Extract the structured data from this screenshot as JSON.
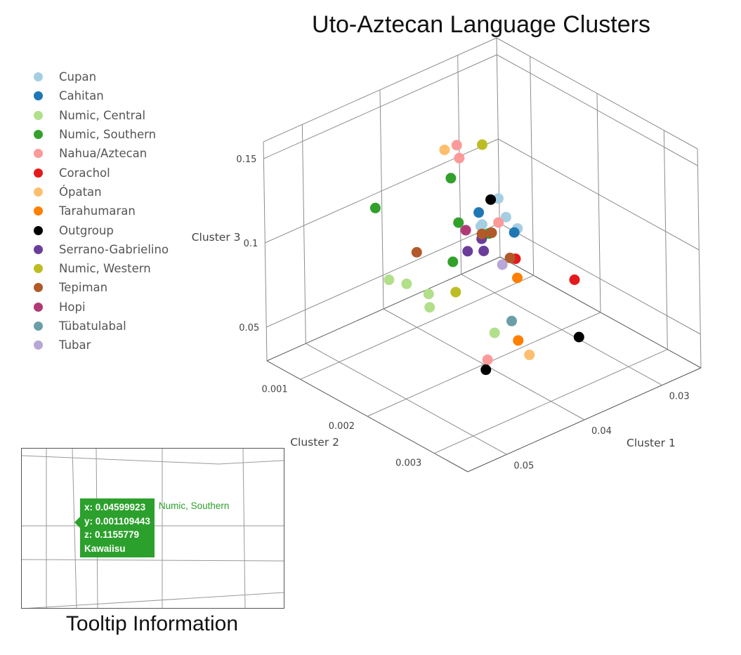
{
  "chart_data": {
    "type": "scatter",
    "title": "Uto-Aztecan Language Clusters",
    "xlabel": "Cluster 1",
    "ylabel": "Cluster 2",
    "zlabel": "Cluster 3",
    "x_ticks": [
      "0.03",
      "0.04",
      "0.05"
    ],
    "y_ticks": [
      "0.001",
      "0.002",
      "0.003"
    ],
    "z_ticks": [
      "0.15",
      "0.1",
      "0.05"
    ],
    "xlim": [
      0.025,
      0.055
    ],
    "ylim": [
      0.0005,
      0.0035
    ],
    "zlim": [
      0.03,
      0.16
    ],
    "legend_position": "left",
    "series": [
      {
        "name": "Cupan",
        "color": "#a6cee3",
        "points": [
          [
            0.0301,
            0.0012,
            0.0795
          ],
          [
            0.0268,
            0.0007,
            0.0728
          ],
          [
            0.0325,
            0.0011,
            0.0768
          ],
          [
            0.0357,
            0.0015,
            0.0932
          ],
          [
            0.0295,
            0.0013,
            0.0737
          ]
        ]
      },
      {
        "name": "Cahitan",
        "color": "#1f78b4",
        "points": [
          [
            0.0412,
            0.0021,
            0.1248
          ],
          [
            0.0384,
            0.0023,
            0.1116
          ]
        ]
      },
      {
        "name": "Numic, Central",
        "color": "#b2df8a",
        "points": [
          [
            0.0519,
            0.0026,
            0.1015
          ],
          [
            0.0531,
            0.0024,
            0.1135
          ],
          [
            0.0537,
            0.0028,
            0.1175
          ],
          [
            0.0528,
            0.0021,
            0.1087
          ],
          [
            0.0462,
            0.0029,
            0.0812
          ]
        ]
      },
      {
        "name": "Numic, Southern",
        "color": "#33a02c",
        "points": [
          [
            0.04599923,
            0.001109443,
            0.1155779
          ],
          [
            0.0472,
            0.0025,
            0.1399
          ],
          [
            0.0442,
            0.0026,
            0.1294
          ],
          [
            0.0463,
            0.0023,
            0.1104
          ],
          [
            0.0413,
            0.0017,
            0.1366
          ]
        ]
      },
      {
        "name": "Nahua/Aztecan",
        "color": "#fb9a99",
        "points": [
          [
            0.0387,
            0.0021,
            0.1137
          ],
          [
            0.0351,
            0.0011,
            0.1226
          ],
          [
            0.0337,
            0.0009,
            0.123
          ],
          [
            0.0497,
            0.0032,
            0.079
          ]
        ]
      },
      {
        "name": "Corachol",
        "color": "#e31a1c",
        "points": [
          [
            0.0349,
            0.0019,
            0.08
          ],
          [
            0.0291,
            0.0021,
            0.06
          ]
        ]
      },
      {
        "name": "Ópatan",
        "color": "#fdbf6f",
        "points": [
          [
            0.0412,
            0.0016,
            0.151
          ],
          [
            0.0435,
            0.0031,
            0.067
          ]
        ]
      },
      {
        "name": "Tarahumaran",
        "color": "#ff7f00",
        "points": [
          [
            0.0381,
            0.0023,
            0.084
          ],
          [
            0.0432,
            0.0029,
            0.0705
          ]
        ]
      },
      {
        "name": "Outgroup",
        "color": "#000000",
        "points": [
          [
            0.0388,
            0.002,
            0.1253
          ],
          [
            0.044,
            0.0025,
            0.046
          ],
          [
            0.0295,
            0.0022,
            0.029
          ]
        ]
      },
      {
        "name": "Serrano-Gabrielino",
        "color": "#6a3d9a",
        "points": [
          [
            0.041,
            0.0019,
            0.097
          ],
          [
            0.0381,
            0.0018,
            0.089
          ],
          [
            0.0341,
            0.0013,
            0.077
          ]
        ]
      },
      {
        "name": "Numic, Western",
        "color": "#bcbd22",
        "points": [
          [
            0.046,
            0.0023,
            0.0918
          ],
          [
            0.0296,
            0.0008,
            0.1127
          ]
        ]
      },
      {
        "name": "Tepiman",
        "color": "#b15928",
        "points": [
          [
            0.0509,
            0.0023,
            0.1255
          ],
          [
            0.0383,
            0.0018,
            0.0995
          ],
          [
            0.0373,
            0.0021,
            0.0898
          ],
          [
            0.0345,
            0.0015,
            0.0858
          ]
        ]
      },
      {
        "name": "Hopi",
        "color": "#b03a76",
        "points": [
          [
            0.0395,
            0.0017,
            0.102
          ]
        ]
      },
      {
        "name": "Tübatulabal",
        "color": "#6a9fa8",
        "points": [
          [
            0.0423,
            0.0027,
            0.0758
          ]
        ]
      },
      {
        "name": "Tubar",
        "color": "#b7a6d6",
        "points": [
          [
            0.0366,
            0.0019,
            0.08
          ]
        ]
      }
    ]
  },
  "inset": {
    "caption": "Tooltip Information",
    "tooltip": {
      "x_line": "x: 0.04599923",
      "y_line": "y: 0.001109443",
      "z_line": "z: 0.1155779",
      "name": "Kawaiisu",
      "series": "Numic, Southern",
      "color": "#2ca02c"
    }
  }
}
